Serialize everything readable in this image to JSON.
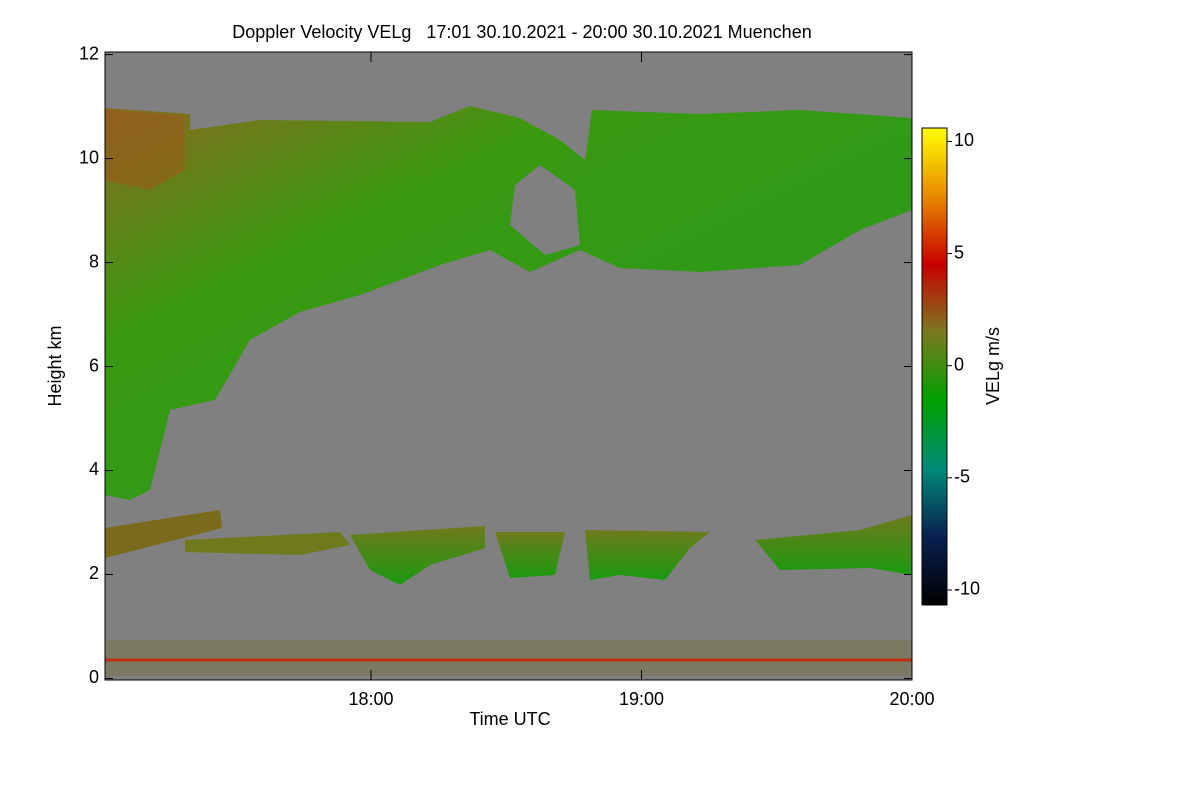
{
  "chart_data": {
    "type": "heatmap",
    "title": "Doppler Velocity VELg   17:01 30.10.2021 - 20:00 30.10.2021 Muenchen",
    "x_label": "Time UTC",
    "y_label": "Height km",
    "xlim": [
      17.0167,
      20.0
    ],
    "xticks": [
      {
        "value": 18,
        "label": "18:00"
      },
      {
        "value": 19,
        "label": "19:00"
      },
      {
        "value": 20,
        "label": "20:00"
      }
    ],
    "ylim": [
      -0.03,
      12.05
    ],
    "yticks": [
      0,
      2,
      4,
      6,
      8,
      10,
      12
    ],
    "colorbar": {
      "label": "VELg m/s",
      "clim": [
        -10.67,
        10.6
      ],
      "ticks": [
        -10,
        -5,
        0,
        5,
        10
      ],
      "colormap": [
        "#000000",
        "#0a2050",
        "#008a78",
        "#00a000",
        "#7a7a20",
        "#c80000",
        "#e88a00",
        "#ffff00"
      ]
    },
    "background": "#808080"
  }
}
